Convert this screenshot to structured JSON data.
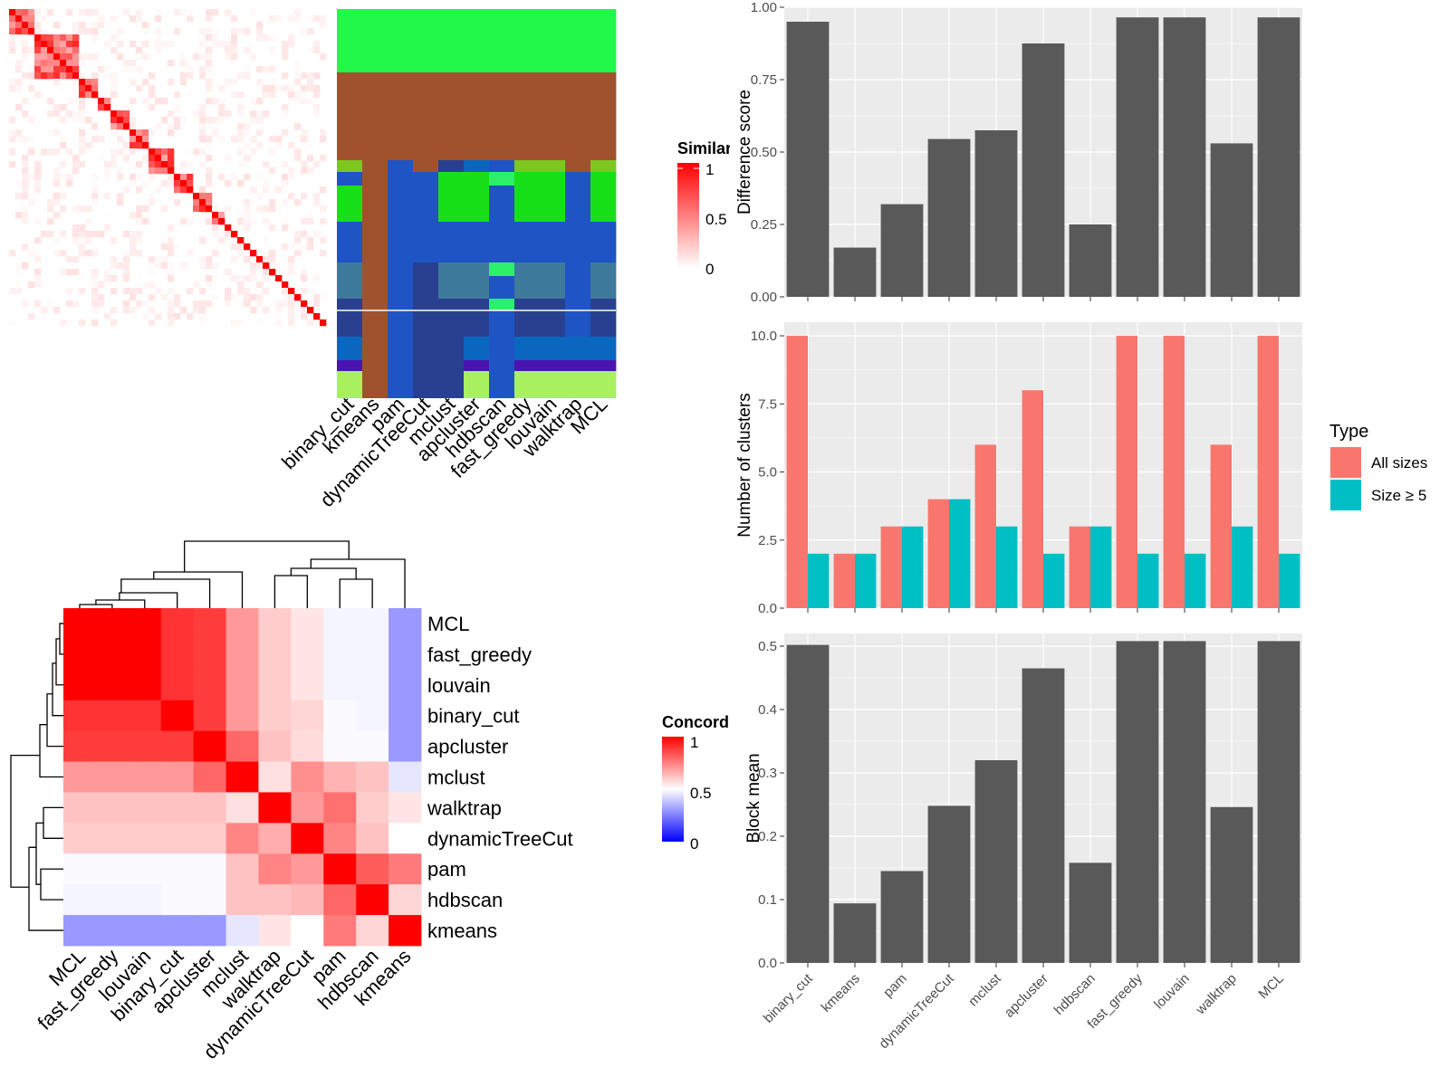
{
  "methods_bar_order": [
    "binary_cut",
    "kmeans",
    "pam",
    "dynamicTreeCut",
    "mclust",
    "apcluster",
    "hdbscan",
    "fast_greedy",
    "louvain",
    "walktrap",
    "MCL"
  ],
  "similarity_heatmap": {
    "legend_title": "Similarity",
    "legend_ticks": [
      "1",
      "0.5",
      "0"
    ],
    "column_labels": [
      "binary_cut",
      "kmeans",
      "pam",
      "dynamicTreeCut",
      "mclust",
      "apcluster",
      "hdbscan",
      "fast_greedy",
      "louvain",
      "walktrap",
      "MCL"
    ],
    "low_color": "#ffffff",
    "high_color": "#ff0000"
  },
  "concordance_heatmap": {
    "legend_title": "Concordance",
    "legend_ticks": [
      "1",
      "0.5",
      "0"
    ],
    "labels": [
      "MCL",
      "fast_greedy",
      "louvain",
      "binary_cut",
      "apcluster",
      "mclust",
      "walktrap",
      "dynamicTreeCut",
      "pam",
      "hdbscan",
      "kmeans"
    ],
    "low_color": "#0000ff",
    "mid_color": "#ffffff",
    "high_color": "#ff0000"
  },
  "legend": {
    "title": "Type",
    "items": [
      {
        "label": "All sizes",
        "color": "#F8766D"
      },
      {
        "label": "Size ≥ 5",
        "color": "#00BFC4"
      }
    ]
  },
  "chart_data": [
    {
      "type": "bar",
      "ylabel": "Difference score",
      "categories": [
        "binary_cut",
        "kmeans",
        "pam",
        "dynamicTreeCut",
        "mclust",
        "apcluster",
        "hdbscan",
        "fast_greedy",
        "louvain",
        "walktrap",
        "MCL"
      ],
      "values": [
        0.95,
        0.17,
        0.32,
        0.545,
        0.575,
        0.875,
        0.25,
        0.965,
        0.965,
        0.53,
        0.965
      ],
      "ylim": [
        0,
        1
      ],
      "yticks": [
        "0.00",
        "0.25",
        "0.50",
        "0.75",
        "1.00"
      ],
      "bar_color": "#595959"
    },
    {
      "type": "bar",
      "ylabel": "Number of clusters",
      "categories": [
        "binary_cut",
        "kmeans",
        "pam",
        "dynamicTreeCut",
        "mclust",
        "apcluster",
        "hdbscan",
        "fast_greedy",
        "louvain",
        "walktrap",
        "MCL"
      ],
      "series": [
        {
          "name": "All sizes",
          "values": [
            10,
            2,
            3,
            4,
            6,
            8,
            3,
            10,
            10,
            6,
            10
          ]
        },
        {
          "name": "Size ≥ 5",
          "values": [
            2,
            2,
            3,
            4,
            3,
            2,
            3,
            2,
            2,
            3,
            2
          ]
        }
      ],
      "ylim": [
        0,
        10.5
      ],
      "yticks": [
        "0.0",
        "2.5",
        "5.0",
        "7.5",
        "10.0"
      ]
    },
    {
      "type": "bar",
      "ylabel": "Block mean",
      "categories": [
        "binary_cut",
        "kmeans",
        "pam",
        "dynamicTreeCut",
        "mclust",
        "apcluster",
        "hdbscan",
        "fast_greedy",
        "louvain",
        "walktrap",
        "MCL"
      ],
      "values": [
        0.502,
        0.094,
        0.145,
        0.248,
        0.32,
        0.465,
        0.158,
        0.508,
        0.508,
        0.246,
        0.508
      ],
      "ylim": [
        0,
        0.52
      ],
      "yticks": [
        "0.0",
        "0.1",
        "0.2",
        "0.3",
        "0.4",
        "0.5"
      ],
      "bar_color": "#595959"
    }
  ]
}
